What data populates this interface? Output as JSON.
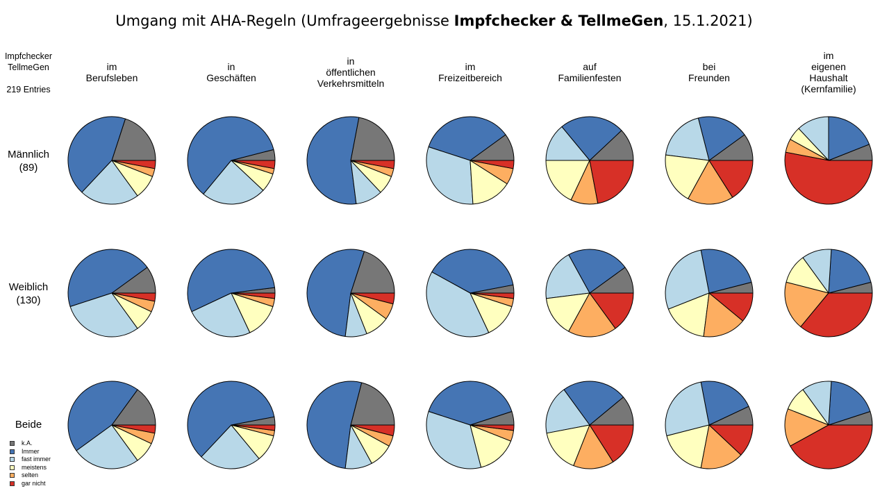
{
  "title": {
    "prefix": "Umgang mit AHA-Regeln (Umfrageergebnisse ",
    "bold": "Impfchecker & TellmeGen",
    "suffix": ", 15.1.2021)"
  },
  "source_note": {
    "line1": "Impfchecker",
    "line2": "TellmeGen",
    "line3": "219 Entries"
  },
  "legend": [
    {
      "label": "k.A.",
      "color": "#777777"
    },
    {
      "label": "Immer",
      "color": "#4575b4"
    },
    {
      "label": "fast immer",
      "color": "#b8d8e8"
    },
    {
      "label": "meistens",
      "color": "#ffffbf"
    },
    {
      "label": "selten",
      "color": "#fdae61"
    },
    {
      "label": "gar nicht",
      "color": "#d73027"
    }
  ],
  "chart_data": {
    "type": "pie",
    "title": "Umgang mit AHA-Regeln (Umfrageergebnisse Impfchecker & TellmeGen, 15.1.2021)",
    "slice_order": [
      "k.A.",
      "Immer",
      "fast immer",
      "meistens",
      "selten",
      "gar nicht"
    ],
    "direction": "counterclockwise from 3 o'clock",
    "columns": [
      "im\nBerufsleben",
      "in\nGeschäften",
      "in\nöffentlichen\nVerkehrsmitteln",
      "im\nFreizeitbereich",
      "auf\nFamilienfesten",
      "bei\nFreunden",
      "im\neigenen\nHaushalt\n(Kernfamilie)"
    ],
    "rows": [
      {
        "label": "Männlich\n(89)",
        "values": [
          [
            0.2,
            0.43,
            0.22,
            0.09,
            0.03,
            0.03
          ],
          [
            0.04,
            0.6,
            0.24,
            0.07,
            0.02,
            0.03
          ],
          [
            0.22,
            0.55,
            0.1,
            0.07,
            0.03,
            0.03
          ],
          [
            0.1,
            0.35,
            0.31,
            0.15,
            0.06,
            0.03
          ],
          [
            0.12,
            0.24,
            0.14,
            0.18,
            0.1,
            0.22
          ],
          [
            0.1,
            0.19,
            0.19,
            0.19,
            0.17,
            0.16
          ],
          [
            0.06,
            0.19,
            0.12,
            0.05,
            0.05,
            0.53
          ]
        ]
      },
      {
        "label": "Weiblich\n(130)",
        "values": [
          [
            0.1,
            0.45,
            0.3,
            0.08,
            0.04,
            0.03
          ],
          [
            0.02,
            0.55,
            0.25,
            0.13,
            0.03,
            0.02
          ],
          [
            0.2,
            0.53,
            0.08,
            0.09,
            0.06,
            0.04
          ],
          [
            0.03,
            0.39,
            0.4,
            0.13,
            0.03,
            0.02
          ],
          [
            0.1,
            0.23,
            0.19,
            0.15,
            0.18,
            0.15
          ],
          [
            0.04,
            0.24,
            0.28,
            0.17,
            0.16,
            0.11
          ],
          [
            0.04,
            0.2,
            0.11,
            0.11,
            0.18,
            0.36
          ]
        ]
      },
      {
        "label": "Beide",
        "values": [
          [
            0.15,
            0.45,
            0.25,
            0.08,
            0.04,
            0.03
          ],
          [
            0.03,
            0.6,
            0.23,
            0.1,
            0.02,
            0.02
          ],
          [
            0.21,
            0.52,
            0.1,
            0.09,
            0.04,
            0.04
          ],
          [
            0.05,
            0.4,
            0.34,
            0.15,
            0.04,
            0.02
          ],
          [
            0.11,
            0.24,
            0.18,
            0.16,
            0.15,
            0.16
          ],
          [
            0.07,
            0.21,
            0.26,
            0.18,
            0.16,
            0.12
          ],
          [
            0.05,
            0.19,
            0.11,
            0.09,
            0.14,
            0.42
          ]
        ]
      }
    ]
  }
}
